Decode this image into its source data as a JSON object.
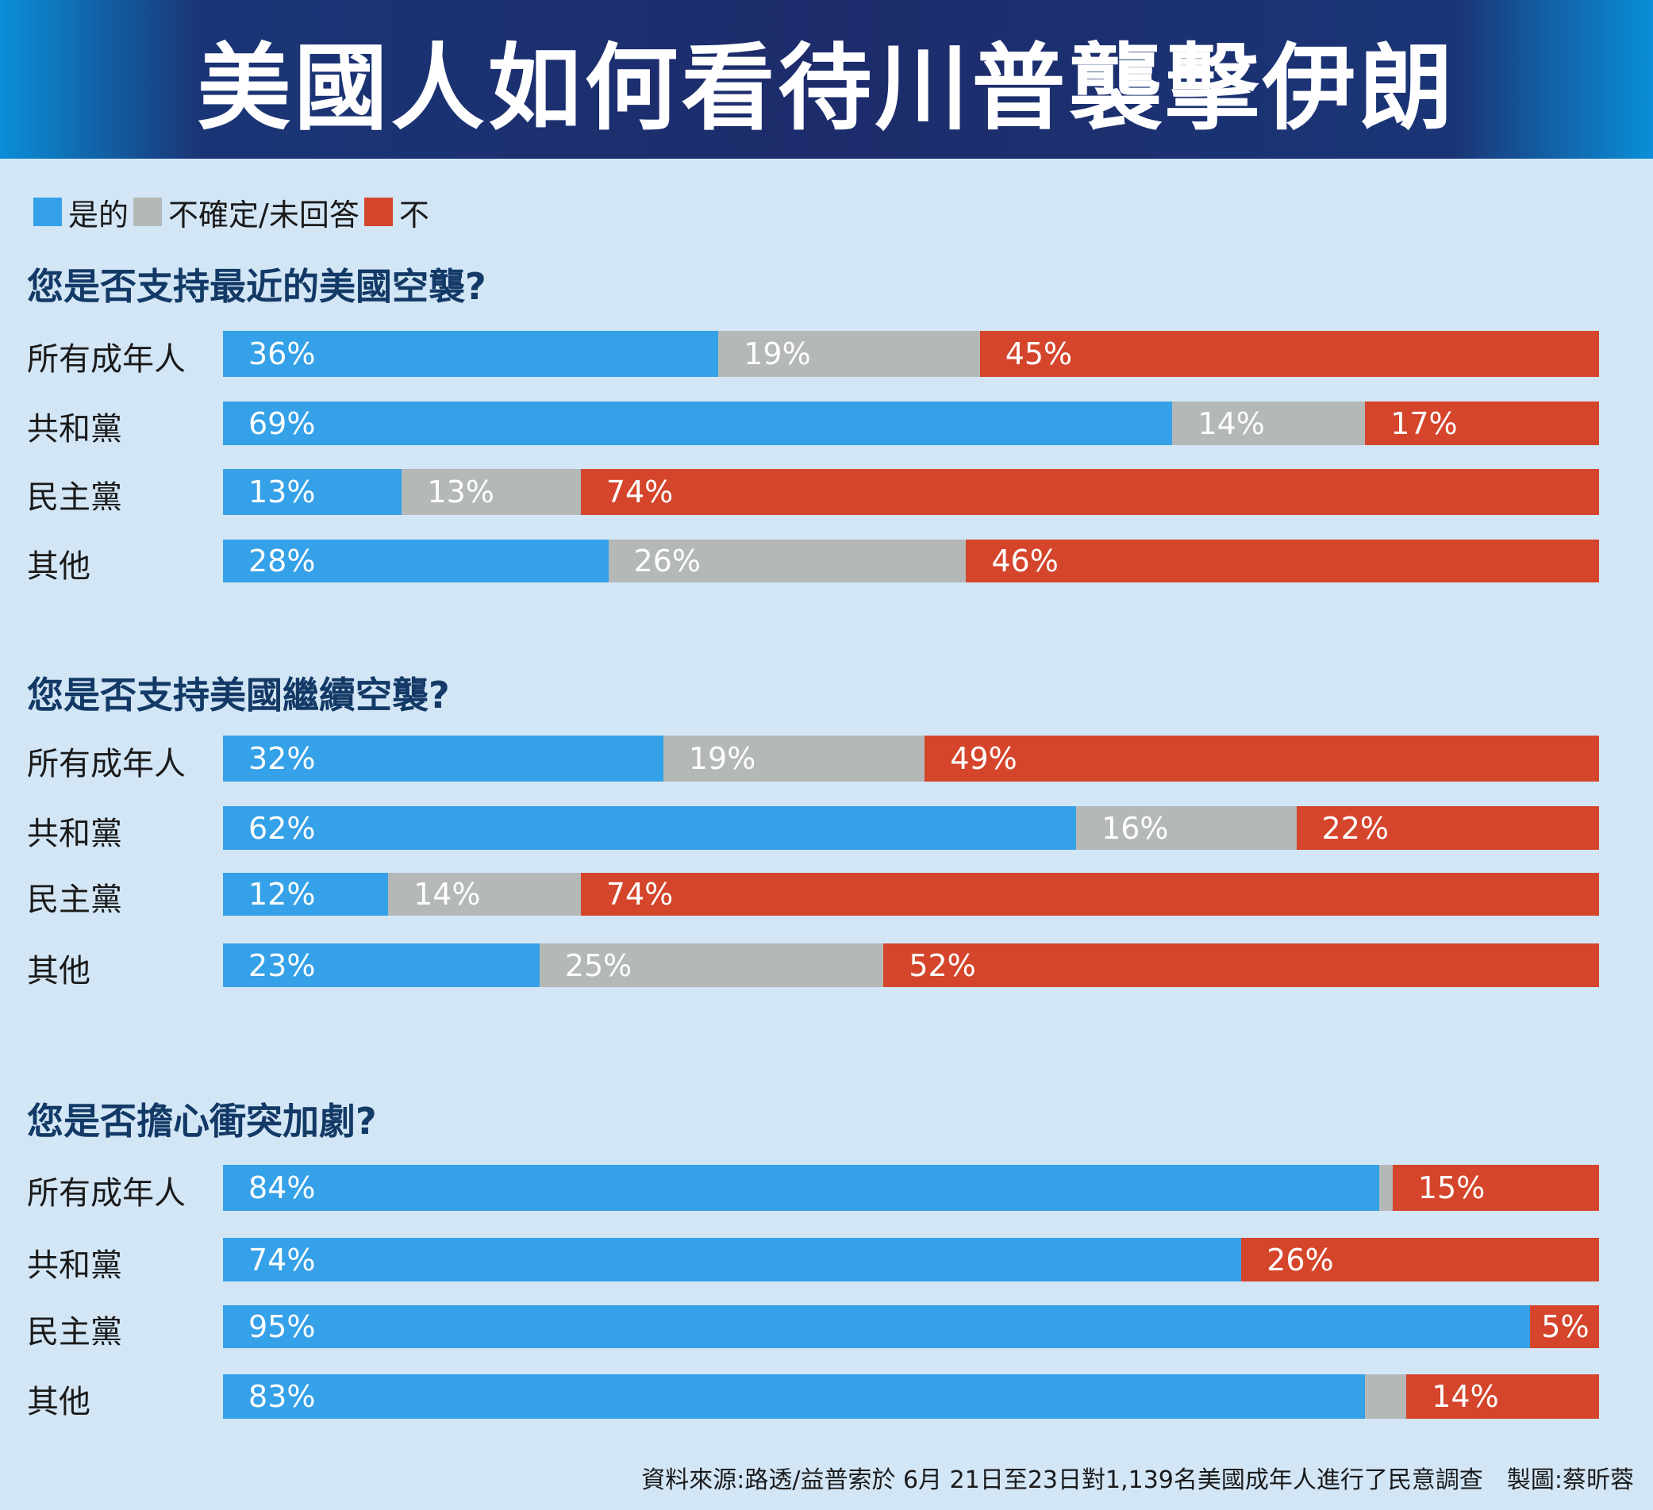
{
  "title": "美國人如何看待川普襲擊伊朗",
  "legend": [
    {
      "label": "是的",
      "color": "#35a1e8"
    },
    {
      "label": "不確定/未回答",
      "color": "#b4b8b6"
    },
    {
      "label": "不",
      "color": "#d5452b"
    }
  ],
  "source": "資料來源:路透/益普索於 6月 21日至23日對1,139名美國成年人進行了民意調查　製圖:蔡昕蓉",
  "chart_data": [
    {
      "type": "bar",
      "stacked": true,
      "orientation": "horizontal",
      "title": "您是否支持最近的美國空襲?",
      "categories": [
        "所有成年人",
        "共和黨",
        "民主黨",
        "其他"
      ],
      "series": [
        {
          "name": "是的",
          "values": [
            36,
            69,
            13,
            28
          ]
        },
        {
          "name": "不確定/未回答",
          "values": [
            19,
            14,
            13,
            26
          ]
        },
        {
          "name": "不",
          "values": [
            45,
            17,
            74,
            46
          ]
        }
      ]
    },
    {
      "type": "bar",
      "stacked": true,
      "orientation": "horizontal",
      "title": "您是否支持美國繼續空襲?",
      "categories": [
        "所有成年人",
        "共和黨",
        "民主黨",
        "其他"
      ],
      "series": [
        {
          "name": "是的",
          "values": [
            32,
            62,
            12,
            23
          ]
        },
        {
          "name": "不確定/未回答",
          "values": [
            19,
            16,
            14,
            25
          ]
        },
        {
          "name": "不",
          "values": [
            49,
            22,
            74,
            52
          ]
        }
      ]
    },
    {
      "type": "bar",
      "stacked": true,
      "orientation": "horizontal",
      "title": "您是否擔心衝突加劇?",
      "categories": [
        "所有成年人",
        "共和黨",
        "民主黨",
        "其他"
      ],
      "series": [
        {
          "name": "是的",
          "values": [
            84,
            74,
            95,
            83
          ]
        },
        {
          "name": "不確定/未回答",
          "values": [
            1,
            0,
            0,
            3
          ]
        },
        {
          "name": "不",
          "values": [
            15,
            26,
            5,
            14
          ]
        }
      ],
      "unlabeled_series": [
        "不確定/未回答"
      ]
    }
  ]
}
